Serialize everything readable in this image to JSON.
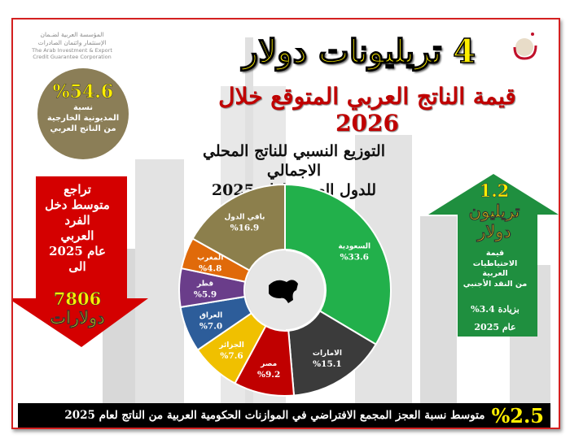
{
  "corporation": {
    "name_ar_1": "المؤسسة العربية لضـمان",
    "name_ar_2": "الإستثمار وائتمان الصادرات",
    "name_en_1": "The Arab Investment & Export",
    "name_en_2": "Credit Guarantee Corporation"
  },
  "headline": {
    "main": "4 تريليونات دولار",
    "sub": "قيمة الناتج العربي المتوقع خلال 2026"
  },
  "debt_circle": {
    "value": "%54.6",
    "label_1": "نسبة",
    "label_2": "المديونية الخارجية",
    "label_3": "من الناتج العربي"
  },
  "income_arrow": {
    "line_1": "تراجع",
    "line_2": "متوسط دخل",
    "line_3": "الفرد",
    "line_4": "العربي",
    "line_5": "عام 2025",
    "line_6": "الى",
    "value": "7806",
    "unit": "دولارات"
  },
  "reserves_arrow": {
    "value": "1.2",
    "unit_1": "تريليون",
    "unit_2": "دولار",
    "label_1": "قيمة",
    "label_2": "الاحتياطيات",
    "label_3": "العربية",
    "label_4": "من النقد الأجنبي",
    "increase": "بزيادة 3.4%",
    "year": "عام 2025"
  },
  "bottom_bar": {
    "value": "%2.5",
    "text": "متوسط نسبة العجز المجمع الافتراضي في الموازنات الحكومية العربية من الناتج لعام 2025"
  },
  "colors": {
    "frame": "#d42020",
    "headline_yellow": "#ffee00",
    "headline_red": "#c00000",
    "debt_circle": "#8b7e57",
    "income_arrow": "#d40000",
    "reserves_arrow": "#1f8f3f"
  },
  "chart_data": {
    "type": "pie",
    "donut": true,
    "title_1": "التوزيع النسبي للناتج المحلي الاجمالي",
    "title_2": "للدول العربية لعام 2025",
    "slices": [
      {
        "label": "السعودية",
        "value": 33.6,
        "display": "%33.6",
        "color": "#22b04b"
      },
      {
        "label": "الامارات",
        "value": 15.1,
        "display": "%15.1",
        "color": "#3b3b3b"
      },
      {
        "label": "مصر",
        "value": 9.2,
        "display": "%9.2",
        "color": "#c00000"
      },
      {
        "label": "الجزائر",
        "value": 7.6,
        "display": "%7.6",
        "color": "#f0c000"
      },
      {
        "label": "العراق",
        "value": 7.0,
        "display": "%7.0",
        "color": "#2d5d9a"
      },
      {
        "label": "قطر",
        "value": 5.9,
        "display": "%5.9",
        "color": "#6a3d8a"
      },
      {
        "label": "المغرب",
        "value": 4.8,
        "display": "%4.8",
        "color": "#e06a0a"
      },
      {
        "label": "باقي الدول",
        "value": 16.9,
        "display": "%16.9",
        "color": "#8c7f4c"
      }
    ]
  }
}
